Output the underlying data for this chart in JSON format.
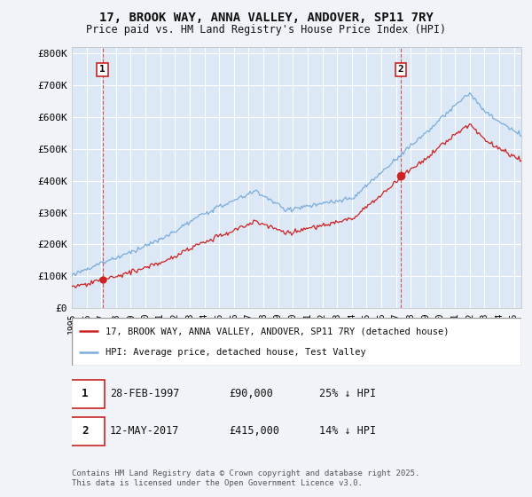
{
  "title_line1": "17, BROOK WAY, ANNA VALLEY, ANDOVER, SP11 7RY",
  "title_line2": "Price paid vs. HM Land Registry's House Price Index (HPI)",
  "bg_color": "#f0f4f8",
  "plot_bg_color": "#dce8f5",
  "grid_color": "#ffffff",
  "hpi_color": "#7aaddb",
  "price_color": "#cc2222",
  "sale1_date": "28-FEB-1997",
  "sale1_price": "£90,000",
  "sale1_note": "25% ↓ HPI",
  "sale2_date": "12-MAY-2017",
  "sale2_price": "£415,000",
  "sale2_note": "14% ↓ HPI",
  "legend1": "17, BROOK WAY, ANNA VALLEY, ANDOVER, SP11 7RY (detached house)",
  "legend2": "HPI: Average price, detached house, Test Valley",
  "footer": "Contains HM Land Registry data © Crown copyright and database right 2025.\nThis data is licensed under the Open Government Licence v3.0.",
  "ylabel_ticks": [
    "£0",
    "£100K",
    "£200K",
    "£300K",
    "£400K",
    "£500K",
    "£600K",
    "£700K",
    "£800K"
  ],
  "ylabel_values": [
    0,
    100000,
    200000,
    300000,
    400000,
    500000,
    600000,
    700000,
    800000
  ],
  "ylim": [
    0,
    820000
  ],
  "start_year": 1995,
  "end_year": 2025
}
